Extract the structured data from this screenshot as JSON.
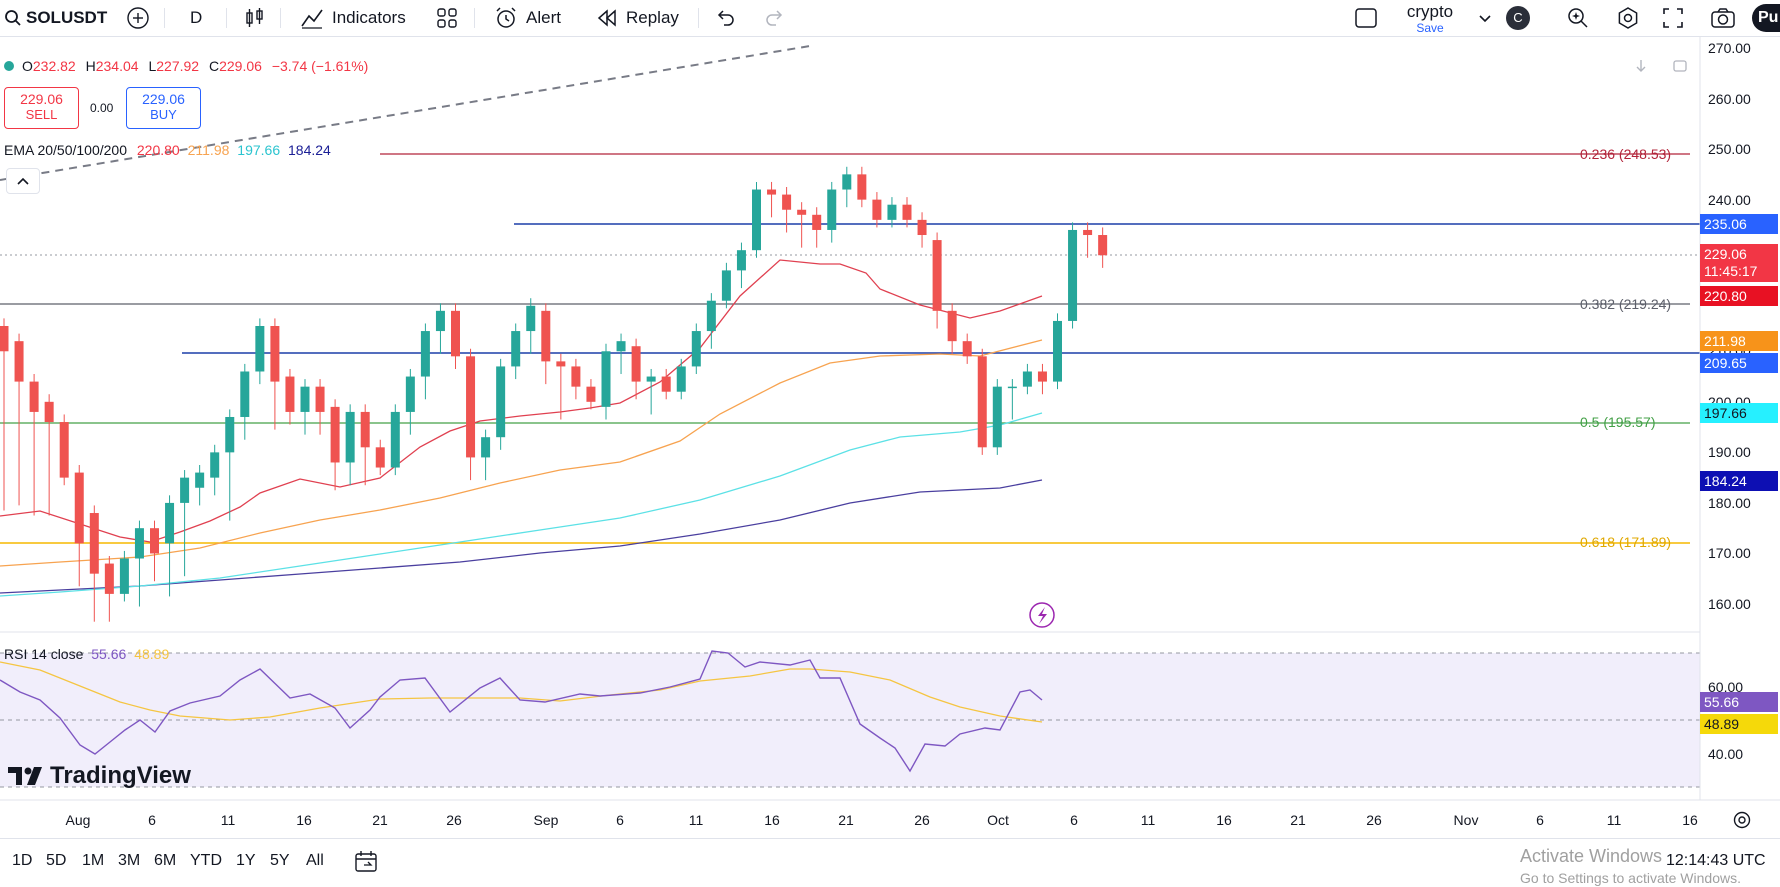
{
  "toolbar": {
    "symbol": "SOLUSDT",
    "interval": "D",
    "indicators_label": "Indicators",
    "alert_label": "Alert",
    "replay_label": "Replay",
    "layout_name": "crypto",
    "layout_save": "Save",
    "avatar_letter": "C",
    "publish_partial": "Pu"
  },
  "legend": {
    "open_label": "O",
    "open": "232.82",
    "high_label": "H",
    "high": "234.04",
    "low_label": "L",
    "low": "227.92",
    "close_label": "C",
    "close": "229.06",
    "change": "−3.74 (−1.61%)",
    "sell_price": "229.06",
    "sell_label": "SELL",
    "spread": "0.00",
    "buy_price": "229.06",
    "buy_label": "BUY",
    "ema_label": "EMA 20/50/100/200",
    "ema20": "220.80",
    "ema50": "211.98",
    "ema100": "197.66",
    "ema200": "184.24"
  },
  "fib": {
    "f0236": "0.236 (248.53)",
    "f0382": "0.382 (219.24)",
    "f05": "0.5 (195.57)",
    "f0618": "0.618 (171.89)"
  },
  "price_axis": {
    "ticks": [
      "270.00",
      "260.00",
      "250.00",
      "240.00",
      "230.00",
      "220.00",
      "210.00",
      "200.00",
      "190.00",
      "180.00",
      "170.00",
      "160.00"
    ],
    "labels": {
      "hline_upper": "235.06",
      "last": "229.06",
      "countdown": "11:45:17",
      "ema20": "220.80",
      "ema50": "211.98",
      "hline_lower": "209.65",
      "ema100": "197.66",
      "ema200": "184.24"
    }
  },
  "rsi": {
    "label": "RSI 14 close",
    "value": "55.66",
    "ma": "48.89",
    "ticks": [
      "60.00",
      "40.00"
    ]
  },
  "time_axis": [
    "Aug",
    "6",
    "11",
    "16",
    "21",
    "26",
    "Sep",
    "6",
    "11",
    "16",
    "21",
    "26",
    "Oct",
    "6",
    "11",
    "16",
    "21",
    "26",
    "Nov",
    "6",
    "11",
    "16"
  ],
  "timeframes": [
    "1D",
    "5D",
    "1M",
    "3M",
    "6M",
    "YTD",
    "1Y",
    "5Y",
    "All"
  ],
  "clock": "12:14:43 UTC",
  "watermark": "TradingView",
  "windows": {
    "line1": "Activate Windows",
    "line2": "Go to Settings to activate Windows."
  },
  "colors": {
    "up": "#26a69a",
    "down": "#ef5350",
    "ema20": "#f23645",
    "ema50": "#f7a350",
    "ema100": "#5ce1e6",
    "ema200": "#4a3f9f",
    "hline": "#2962ff",
    "rsi": "#7e57c2",
    "rsi_ma": "#f5c542"
  },
  "chart_data": {
    "type": "candlestick",
    "symbol": "SOLUSDT",
    "interval": "1D",
    "ylim": [
      155,
      272
    ],
    "candles": [
      [
        215,
        210,
        180
      ],
      [
        212,
        204,
        181
      ],
      [
        204,
        198,
        179
      ],
      [
        200,
        196,
        179
      ],
      [
        196,
        185,
        185
      ],
      [
        186,
        172,
        165
      ],
      [
        178,
        166,
        158
      ],
      [
        168,
        162,
        158
      ],
      [
        162,
        169,
        164
      ],
      [
        169,
        175,
        161
      ],
      [
        175,
        170,
        166
      ],
      [
        172,
        180,
        163
      ],
      [
        180,
        185,
        167
      ],
      [
        183,
        186,
        181
      ],
      [
        185,
        190,
        183
      ],
      [
        190,
        197,
        178
      ],
      [
        197,
        206,
        194
      ],
      [
        206,
        215,
        205
      ],
      [
        215,
        204,
        196
      ],
      [
        205,
        198,
        197
      ],
      [
        198,
        203,
        195
      ],
      [
        203,
        198,
        195
      ],
      [
        199,
        188,
        184
      ],
      [
        188,
        198,
        185
      ],
      [
        198,
        191,
        185
      ],
      [
        191,
        187,
        187
      ],
      [
        187,
        198,
        187
      ],
      [
        198,
        205,
        195
      ],
      [
        205,
        214,
        202
      ],
      [
        214,
        218,
        211
      ],
      [
        218,
        209,
        208
      ],
      [
        209,
        189,
        186
      ],
      [
        189,
        193,
        186
      ],
      [
        193,
        207,
        192
      ],
      [
        207,
        214,
        206
      ],
      [
        214,
        219,
        211
      ],
      [
        218,
        208,
        205
      ],
      [
        208,
        207,
        198
      ],
      [
        207,
        203,
        202
      ],
      [
        203,
        200,
        200
      ],
      [
        199,
        210,
        198
      ],
      [
        210,
        212,
        207
      ],
      [
        211,
        204,
        202
      ],
      [
        204,
        205,
        199
      ],
      [
        205,
        202,
        202
      ],
      [
        202,
        207,
        202
      ],
      [
        207,
        214,
        207
      ],
      [
        214,
        220,
        212
      ],
      [
        220,
        226,
        220
      ],
      [
        226,
        230,
        224
      ],
      [
        230,
        242,
        230
      ],
      [
        242,
        241,
        238
      ],
      [
        241,
        238,
        235
      ],
      [
        238,
        237,
        232
      ],
      [
        237,
        234,
        232
      ],
      [
        234,
        242,
        233
      ],
      [
        242,
        245,
        240
      ],
      [
        245,
        240,
        242
      ],
      [
        240,
        236,
        236
      ],
      [
        236,
        239,
        237
      ],
      [
        239,
        236,
        236
      ],
      [
        236,
        233,
        232
      ],
      [
        232,
        218,
        216
      ],
      [
        218,
        212,
        211
      ],
      [
        212,
        209,
        210
      ],
      [
        209,
        191,
        192
      ],
      [
        191,
        203,
        191
      ],
      [
        203,
        203,
        198
      ],
      [
        203,
        206,
        205
      ],
      [
        206,
        204,
        203
      ],
      [
        204,
        216,
        205
      ],
      [
        216,
        234,
        216
      ],
      [
        234,
        233,
        230
      ],
      [
        233,
        229,
        228
      ]
    ],
    "ema": {
      "20": 220.8,
      "50": 211.98,
      "100": 197.66,
      "200": 184.24
    },
    "horizontal_lines": [
      235.06,
      209.65
    ],
    "fibonacci": [
      {
        "level": 0.236,
        "price": 248.53
      },
      {
        "level": 0.382,
        "price": 219.24
      },
      {
        "level": 0.5,
        "price": 195.57
      },
      {
        "level": 0.618,
        "price": 171.89
      }
    ],
    "rsi": {
      "length": 14,
      "value": 55.66,
      "ma": 48.89,
      "ylim": [
        28,
        72
      ]
    }
  }
}
